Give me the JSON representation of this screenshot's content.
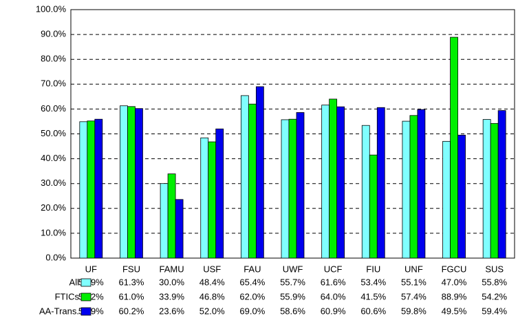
{
  "chart_data": {
    "type": "bar",
    "categories": [
      "UF",
      "FSU",
      "FAMU",
      "USF",
      "FAU",
      "UWF",
      "UCF",
      "FIU",
      "UNF",
      "FGCU",
      "SUS"
    ],
    "series": [
      {
        "name": "All",
        "color": "#80ffff",
        "values": [
          54.9,
          61.3,
          30.0,
          48.4,
          65.4,
          55.7,
          61.6,
          53.4,
          55.1,
          47.0,
          55.8
        ],
        "value_labels": [
          "54.9%",
          "61.3%",
          "30.0%",
          "48.4%",
          "65.4%",
          "55.7%",
          "61.6%",
          "53.4%",
          "55.1%",
          "47.0%",
          "55.8%"
        ]
      },
      {
        "name": "FTICs",
        "color": "#00ee00",
        "values": [
          55.2,
          61.0,
          33.9,
          46.8,
          62.0,
          55.9,
          64.0,
          41.5,
          57.4,
          88.9,
          54.2
        ],
        "value_labels": [
          "55.2%",
          "61.0%",
          "33.9%",
          "46.8%",
          "62.0%",
          "55.9%",
          "64.0%",
          "41.5%",
          "57.4%",
          "88.9%",
          "54.2%"
        ]
      },
      {
        "name": "AA-Trans.",
        "color": "#0000ee",
        "values": [
          55.9,
          60.2,
          23.6,
          52.0,
          69.0,
          58.6,
          60.9,
          60.6,
          59.8,
          49.5,
          59.4
        ],
        "value_labels": [
          "55.9%",
          "60.2%",
          "23.6%",
          "52.0%",
          "69.0%",
          "58.6%",
          "60.9%",
          "60.6%",
          "59.8%",
          "49.5%",
          "59.4%"
        ]
      }
    ],
    "ylim": [
      0,
      100
    ],
    "yticks": [
      {
        "value": 0,
        "label": "0.0%"
      },
      {
        "value": 10,
        "label": "10.0%"
      },
      {
        "value": 20,
        "label": "20.0%"
      },
      {
        "value": 30,
        "label": "30.0%"
      },
      {
        "value": 40,
        "label": "40.0%"
      },
      {
        "value": 50,
        "label": "50.0%"
      },
      {
        "value": 60,
        "label": "60.0%"
      },
      {
        "value": 70,
        "label": "70.0%"
      },
      {
        "value": 80,
        "label": "80.0%"
      },
      {
        "value": 90,
        "label": "90.0%"
      },
      {
        "value": 100,
        "label": "100.0%"
      }
    ],
    "grid": true
  }
}
